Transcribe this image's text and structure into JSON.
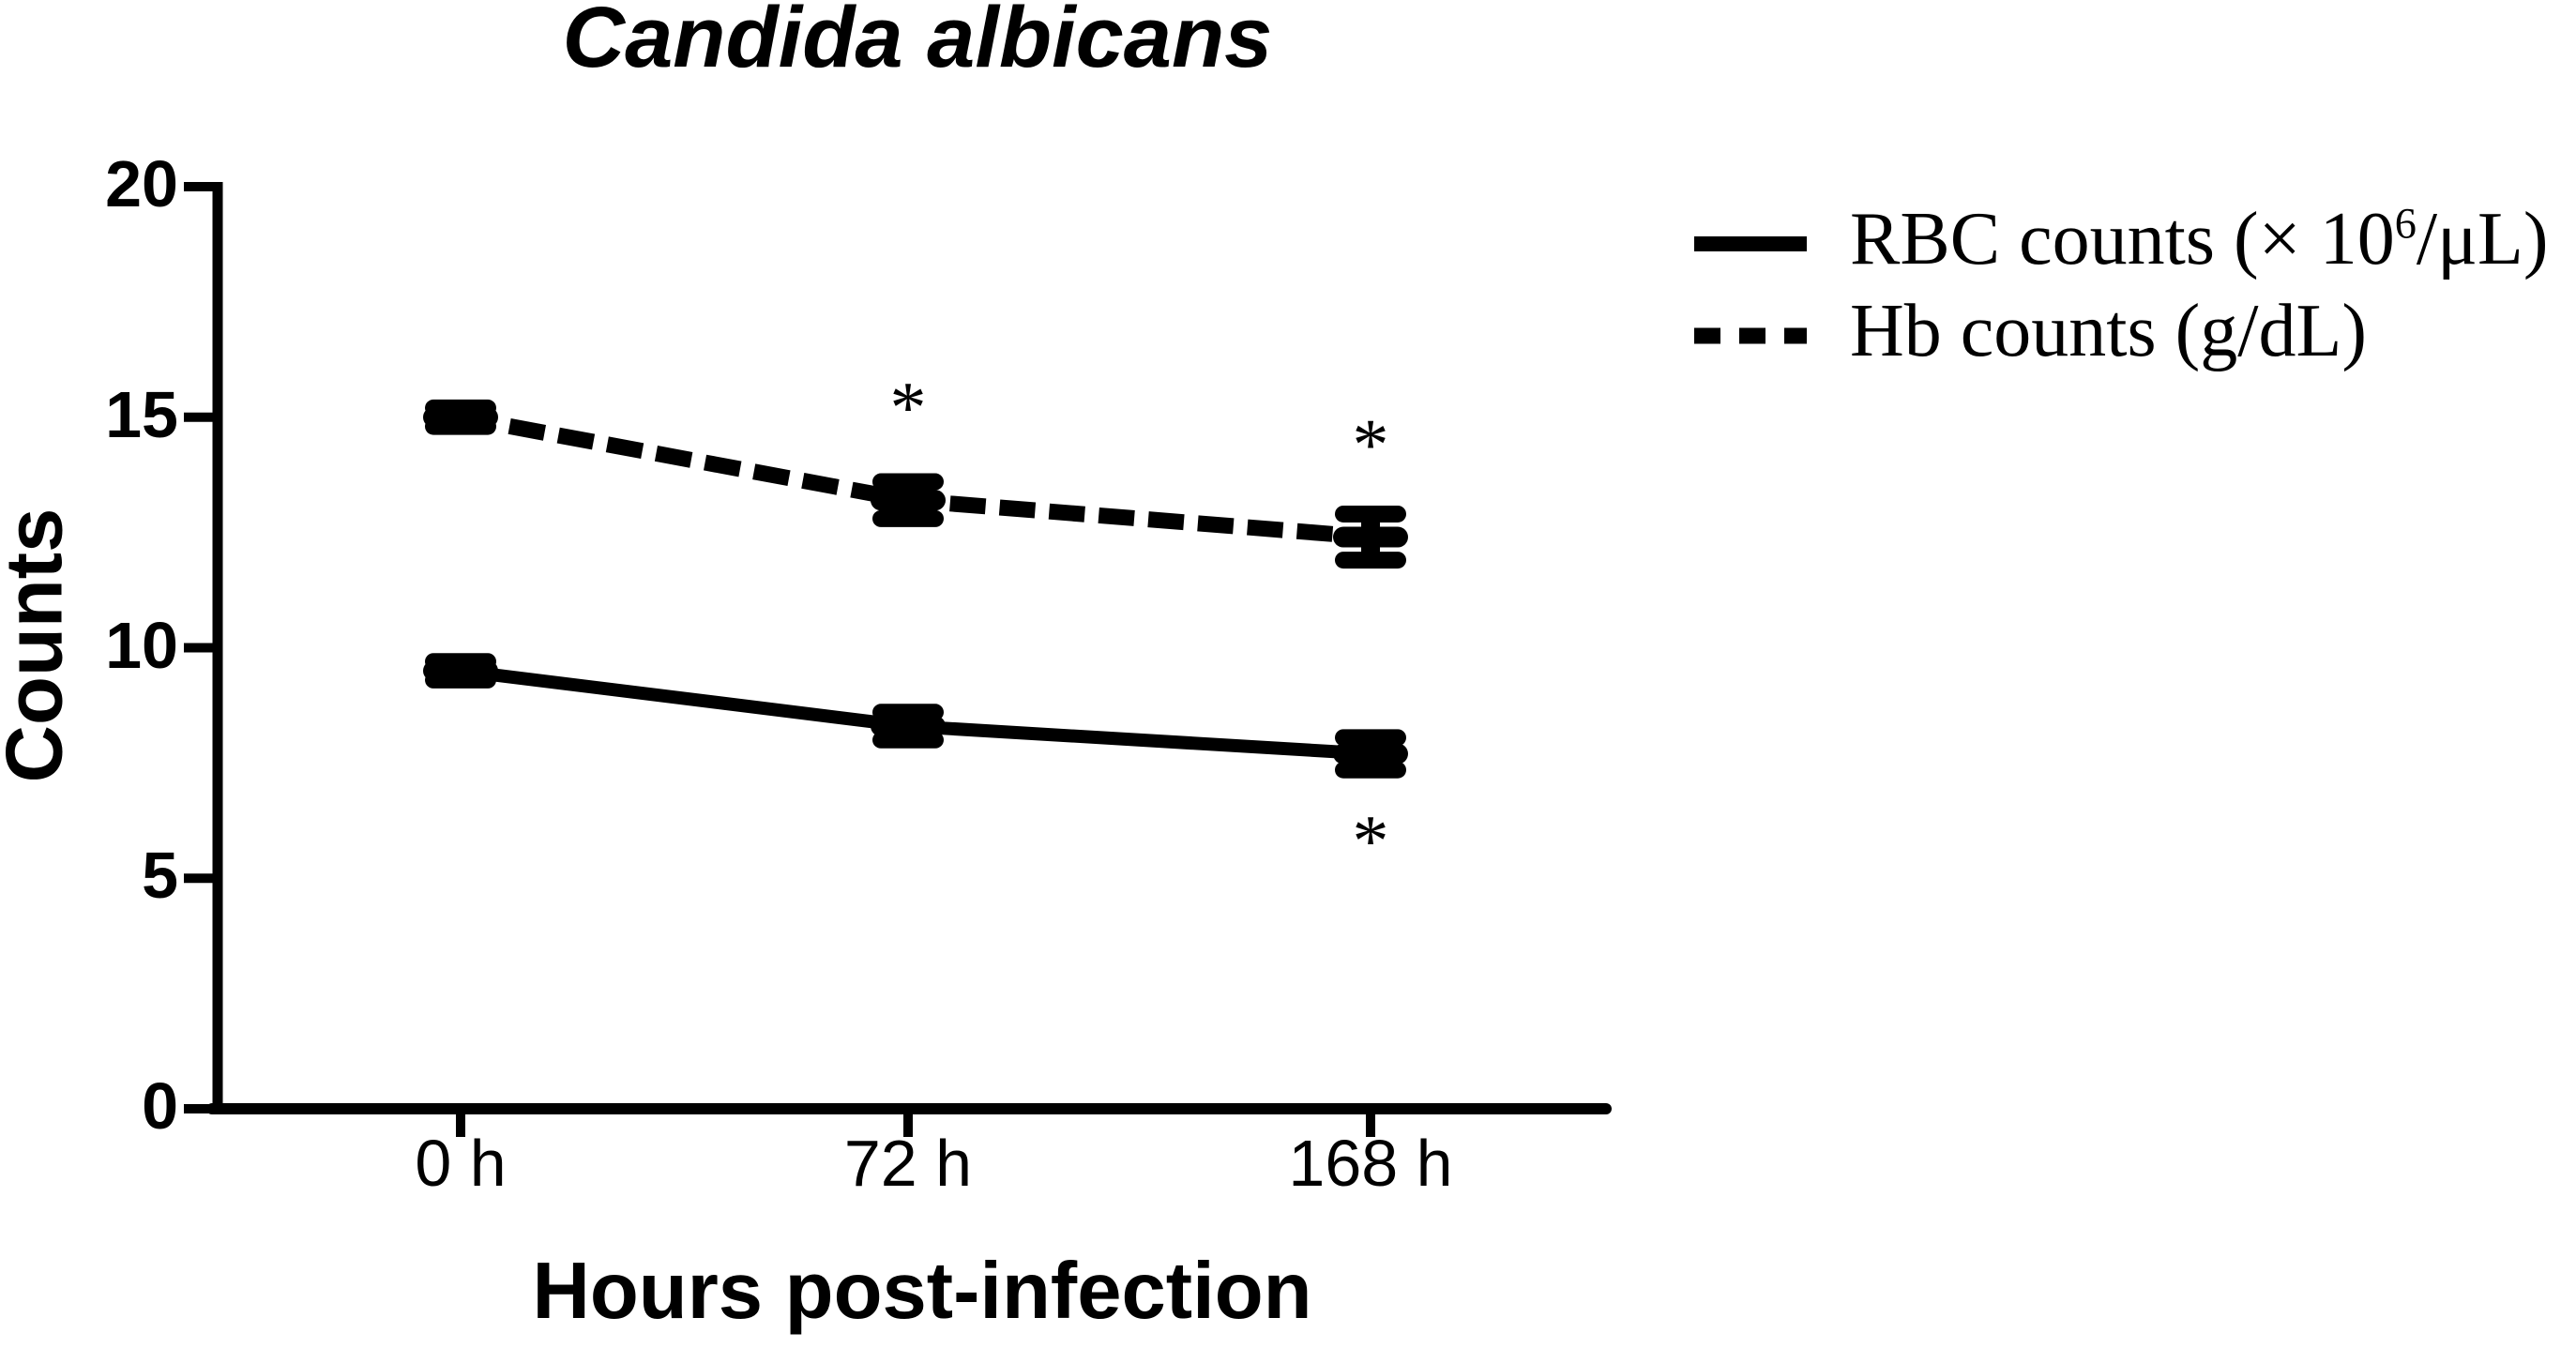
{
  "title": "Candida albicans",
  "colors": {
    "ink": "#000000",
    "background": "#ffffff"
  },
  "legend": {
    "position": "right-of-plot",
    "items": [
      {
        "label": "RBC counts (× 10⁶/μL)",
        "parts": [
          {
            "t": "RBC counts (× 10"
          },
          {
            "t": "6",
            "sup": true
          },
          {
            "t": "/μL)"
          }
        ],
        "line_style": "solid"
      },
      {
        "label": "Hb counts (g/dL)",
        "parts": [
          {
            "t": "Hb counts (g/dL)"
          }
        ],
        "line_style": "dashed"
      }
    ]
  },
  "chart_data": {
    "type": "line",
    "title": "Candida albicans",
    "xlabel": "Hours post-infection",
    "ylabel": "Counts",
    "categories": [
      "0 h",
      "72 h",
      "168 h"
    ],
    "ylim": [
      0,
      20
    ],
    "yticks": [
      0,
      5,
      10,
      15,
      20
    ],
    "ytick_labels": [
      "0",
      "5",
      "10",
      "15",
      "20"
    ],
    "grid": false,
    "legend_position": "right",
    "marker": "horizontal-dash-with-error-bars",
    "series": [
      {
        "name": "RBC counts (× 10⁶/μL)",
        "line_style": "solid",
        "color": "#000000",
        "values": [
          9.5,
          8.3,
          7.7
        ],
        "errors": [
          0.2,
          0.3,
          0.35
        ]
      },
      {
        "name": "Hb counts (g/dL)",
        "line_style": "dashed",
        "color": "#000000",
        "values": [
          15.0,
          13.2,
          12.4
        ],
        "errors": [
          0.2,
          0.4,
          0.5
        ]
      }
    ],
    "annotations": [
      {
        "text": "*",
        "series": "Hb counts (g/dL)",
        "category": "72 h",
        "position": "above",
        "at_value": 15.45
      },
      {
        "text": "*",
        "series": "Hb counts (g/dL)",
        "category": "168 h",
        "position": "above",
        "at_value": 14.65
      },
      {
        "text": "*",
        "series": "RBC counts (× 10⁶/μL)",
        "category": "168 h",
        "position": "below",
        "at_value": 6.05
      }
    ]
  }
}
